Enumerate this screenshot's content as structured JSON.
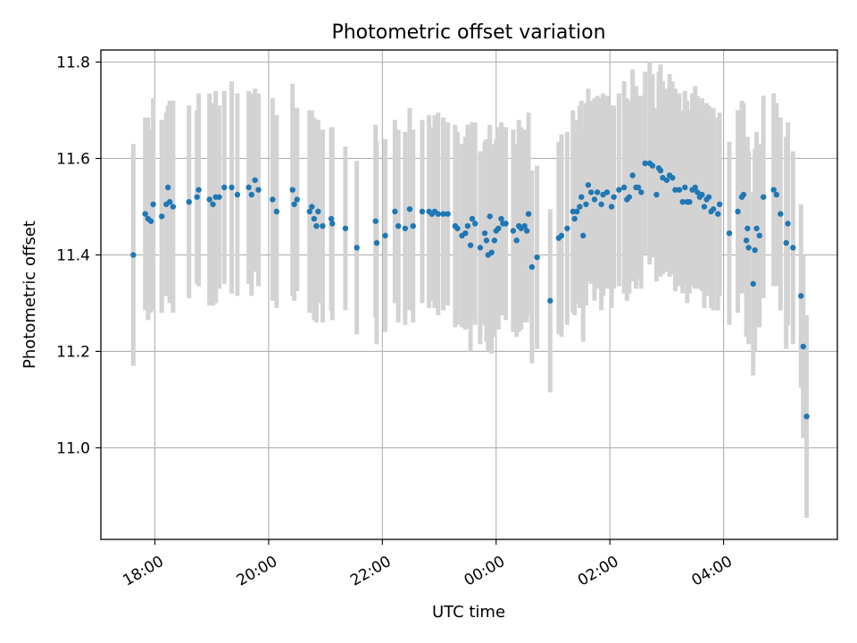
{
  "chart_data": {
    "type": "scatter",
    "title": "Photometric offset variation",
    "xlabel": "UTC time",
    "ylabel": "Photometric offset",
    "x_unit": "UTC time (hours, continuing past midnight as 24+)",
    "xlim": [
      17.05,
      30.0
    ],
    "ylim": [
      10.81,
      11.825
    ],
    "x_ticks": [
      {
        "value": 18,
        "label": "18:00"
      },
      {
        "value": 20,
        "label": "20:00"
      },
      {
        "value": 22,
        "label": "22:00"
      },
      {
        "value": 24,
        "label": "00:00"
      },
      {
        "value": 26,
        "label": "02:00"
      },
      {
        "value": 28,
        "label": "04:00"
      }
    ],
    "y_ticks": [
      {
        "value": 11.0,
        "label": "11.0"
      },
      {
        "value": 11.2,
        "label": "11.2"
      },
      {
        "value": 11.4,
        "label": "11.4"
      },
      {
        "value": 11.6,
        "label": "11.6"
      },
      {
        "value": 11.8,
        "label": "11.8"
      }
    ],
    "grid": true,
    "colors": {
      "points": "#1f77b4",
      "errorbars": "#d3d3d3",
      "grid": "#b0b0b0"
    },
    "series": [
      {
        "points": [
          [
            17.62,
            11.4,
            0.23
          ],
          [
            17.83,
            11.485,
            0.2
          ],
          [
            17.88,
            11.475,
            0.21
          ],
          [
            17.93,
            11.47,
            0.19
          ],
          [
            17.97,
            11.505,
            0.22
          ],
          [
            18.12,
            11.48,
            0.2
          ],
          [
            18.2,
            11.505,
            0.19
          ],
          [
            18.23,
            11.54,
            0.17
          ],
          [
            18.26,
            11.51,
            0.21
          ],
          [
            18.32,
            11.5,
            0.22
          ],
          [
            18.6,
            11.51,
            0.2
          ],
          [
            18.74,
            11.52,
            0.18
          ],
          [
            18.77,
            11.535,
            0.2
          ],
          [
            18.96,
            11.515,
            0.22
          ],
          [
            19.02,
            11.505,
            0.21
          ],
          [
            19.07,
            11.52,
            0.22
          ],
          [
            19.13,
            11.52,
            0.19
          ],
          [
            19.22,
            11.54,
            0.2
          ],
          [
            19.35,
            11.54,
            0.22
          ],
          [
            19.45,
            11.525,
            0.21
          ],
          [
            19.65,
            11.54,
            0.2
          ],
          [
            19.7,
            11.525,
            0.21
          ],
          [
            19.76,
            11.555,
            0.19
          ],
          [
            19.82,
            11.535,
            0.2
          ],
          [
            20.07,
            11.515,
            0.21
          ],
          [
            20.14,
            11.49,
            0.2
          ],
          [
            20.42,
            11.535,
            0.22
          ],
          [
            20.45,
            11.505,
            0.2
          ],
          [
            20.5,
            11.515,
            0.19
          ],
          [
            20.72,
            11.49,
            0.21
          ],
          [
            20.76,
            11.5,
            0.2
          ],
          [
            20.8,
            11.475,
            0.21
          ],
          [
            20.84,
            11.46,
            0.2
          ],
          [
            20.87,
            11.49,
            0.19
          ],
          [
            20.95,
            11.46,
            0.2
          ],
          [
            21.1,
            11.475,
            0.19
          ],
          [
            21.12,
            11.465,
            0.2
          ],
          [
            21.35,
            11.455,
            0.17
          ],
          [
            21.55,
            11.415,
            0.18
          ],
          [
            21.88,
            11.47,
            0.2
          ],
          [
            21.9,
            11.425,
            0.21
          ],
          [
            22.05,
            11.44,
            0.2
          ],
          [
            22.22,
            11.49,
            0.19
          ],
          [
            22.28,
            11.46,
            0.2
          ],
          [
            22.4,
            11.455,
            0.2
          ],
          [
            22.48,
            11.495,
            0.21
          ],
          [
            22.54,
            11.46,
            0.2
          ],
          [
            22.7,
            11.49,
            0.19
          ],
          [
            22.82,
            11.49,
            0.2
          ],
          [
            22.87,
            11.485,
            0.18
          ],
          [
            22.92,
            11.49,
            0.2
          ],
          [
            22.98,
            11.485,
            0.21
          ],
          [
            23.07,
            11.485,
            0.2
          ],
          [
            23.15,
            11.485,
            0.19
          ],
          [
            23.28,
            11.46,
            0.21
          ],
          [
            23.32,
            11.455,
            0.2
          ],
          [
            23.4,
            11.44,
            0.19
          ],
          [
            23.46,
            11.445,
            0.2
          ],
          [
            23.5,
            11.46,
            0.21
          ],
          [
            23.55,
            11.42,
            0.22
          ],
          [
            23.58,
            11.475,
            0.2
          ],
          [
            23.63,
            11.465,
            0.21
          ],
          [
            23.72,
            11.415,
            0.2
          ],
          [
            23.8,
            11.445,
            0.19
          ],
          [
            23.83,
            11.43,
            0.21
          ],
          [
            23.86,
            11.4,
            0.2
          ],
          [
            23.89,
            11.48,
            0.19
          ],
          [
            23.92,
            11.405,
            0.21
          ],
          [
            23.97,
            11.43,
            0.2
          ],
          [
            24.0,
            11.45,
            0.19
          ],
          [
            24.04,
            11.455,
            0.21
          ],
          [
            24.09,
            11.475,
            0.2
          ],
          [
            24.12,
            11.465,
            0.19
          ],
          [
            24.17,
            11.465,
            0.2
          ],
          [
            24.3,
            11.45,
            0.21
          ],
          [
            24.36,
            11.43,
            0.2
          ],
          [
            24.4,
            11.46,
            0.22
          ],
          [
            24.44,
            11.455,
            0.21
          ],
          [
            24.5,
            11.46,
            0.2
          ],
          [
            24.54,
            11.45,
            0.19
          ],
          [
            24.57,
            11.485,
            0.21
          ],
          [
            24.63,
            11.375,
            0.2
          ],
          [
            24.72,
            11.395,
            0.19
          ],
          [
            24.95,
            11.305,
            0.19
          ],
          [
            25.1,
            11.435,
            0.2
          ],
          [
            25.15,
            11.44,
            0.21
          ],
          [
            25.25,
            11.455,
            0.2
          ],
          [
            25.35,
            11.49,
            0.21
          ],
          [
            25.38,
            11.475,
            0.2
          ],
          [
            25.42,
            11.49,
            0.19
          ],
          [
            25.47,
            11.5,
            0.21
          ],
          [
            25.5,
            11.52,
            0.2
          ],
          [
            25.53,
            11.44,
            0.22
          ],
          [
            25.58,
            11.505,
            0.21
          ],
          [
            25.62,
            11.545,
            0.2
          ],
          [
            25.67,
            11.53,
            0.19
          ],
          [
            25.73,
            11.515,
            0.21
          ],
          [
            25.78,
            11.53,
            0.2
          ],
          [
            25.85,
            11.505,
            0.22
          ],
          [
            25.88,
            11.525,
            0.21
          ],
          [
            25.95,
            11.53,
            0.2
          ],
          [
            26.03,
            11.5,
            0.21
          ],
          [
            26.07,
            11.52,
            0.19
          ],
          [
            26.16,
            11.535,
            0.2
          ],
          [
            26.25,
            11.54,
            0.22
          ],
          [
            26.3,
            11.515,
            0.21
          ],
          [
            26.34,
            11.52,
            0.2
          ],
          [
            26.4,
            11.565,
            0.22
          ],
          [
            26.46,
            11.54,
            0.21
          ],
          [
            26.5,
            11.54,
            0.19
          ],
          [
            26.55,
            11.53,
            0.2
          ],
          [
            26.62,
            11.59,
            0.19
          ],
          [
            26.7,
            11.59,
            0.21
          ],
          [
            26.75,
            11.585,
            0.19
          ],
          [
            26.82,
            11.525,
            0.18
          ],
          [
            26.86,
            11.58,
            0.2
          ],
          [
            26.89,
            11.575,
            0.22
          ],
          [
            26.93,
            11.56,
            0.2
          ],
          [
            27.0,
            11.555,
            0.19
          ],
          [
            27.05,
            11.565,
            0.21
          ],
          [
            27.1,
            11.56,
            0.2
          ],
          [
            27.15,
            11.535,
            0.21
          ],
          [
            27.22,
            11.535,
            0.2
          ],
          [
            27.28,
            11.51,
            0.19
          ],
          [
            27.32,
            11.54,
            0.2
          ],
          [
            27.36,
            11.51,
            0.21
          ],
          [
            27.4,
            11.51,
            0.19
          ],
          [
            27.45,
            11.535,
            0.2
          ],
          [
            27.5,
            11.54,
            0.21
          ],
          [
            27.54,
            11.53,
            0.2
          ],
          [
            27.58,
            11.52,
            0.19
          ],
          [
            27.62,
            11.525,
            0.2
          ],
          [
            27.66,
            11.5,
            0.21
          ],
          [
            27.7,
            11.515,
            0.2
          ],
          [
            27.74,
            11.52,
            0.19
          ],
          [
            27.78,
            11.49,
            0.2
          ],
          [
            27.82,
            11.495,
            0.21
          ],
          [
            27.9,
            11.485,
            0.2
          ],
          [
            27.93,
            11.505,
            0.19
          ],
          [
            28.1,
            11.445,
            0.19
          ],
          [
            28.25,
            11.49,
            0.21
          ],
          [
            28.32,
            11.52,
            0.2
          ],
          [
            28.35,
            11.525,
            0.19
          ],
          [
            28.4,
            11.43,
            0.2
          ],
          [
            28.42,
            11.455,
            0.19
          ],
          [
            28.44,
            11.415,
            0.2
          ],
          [
            28.52,
            11.34,
            0.19
          ],
          [
            28.55,
            11.41,
            0.21
          ],
          [
            28.58,
            11.455,
            0.2
          ],
          [
            28.63,
            11.44,
            0.19
          ],
          [
            28.7,
            11.52,
            0.21
          ],
          [
            28.88,
            11.535,
            0.2
          ],
          [
            28.93,
            11.525,
            0.19
          ],
          [
            29.0,
            11.485,
            0.2
          ],
          [
            29.1,
            11.425,
            0.22
          ],
          [
            29.13,
            11.465,
            0.21
          ],
          [
            29.22,
            11.415,
            0.2
          ],
          [
            29.36,
            11.315,
            0.19
          ],
          [
            29.4,
            11.21,
            0.19
          ],
          [
            29.46,
            11.065,
            0.21
          ]
        ]
      }
    ]
  }
}
